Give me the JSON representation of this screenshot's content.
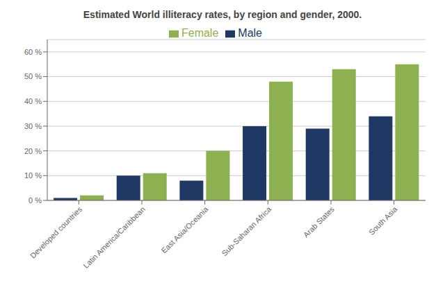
{
  "chart_data": {
    "type": "bar",
    "title": "Estimated World illiteracy rates, by region and gender, 2000.",
    "categories": [
      "Developed countries",
      "Latin America/Caribbean",
      "East Asia/Oceania",
      "Sub-Saharan Africa",
      "Arab States",
      "South Asia"
    ],
    "series": [
      {
        "name": "Male",
        "color": "#1f3864",
        "values": [
          1,
          10,
          8,
          30,
          29,
          34
        ]
      },
      {
        "name": "Female",
        "color": "#8db050",
        "values": [
          2,
          11,
          20,
          48,
          53,
          55
        ]
      }
    ],
    "ylim": [
      0,
      65
    ],
    "yticks": [
      {
        "value": 0,
        "label": "0 %"
      },
      {
        "value": 10,
        "label": "10 %"
      },
      {
        "value": 20,
        "label": "20 %"
      },
      {
        "value": 30,
        "label": "30 %"
      },
      {
        "value": 40,
        "label": "40 %"
      },
      {
        "value": 50,
        "label": "50 %"
      },
      {
        "value": 60,
        "label": "60 %"
      }
    ],
    "grid": true,
    "legend": "top"
  }
}
